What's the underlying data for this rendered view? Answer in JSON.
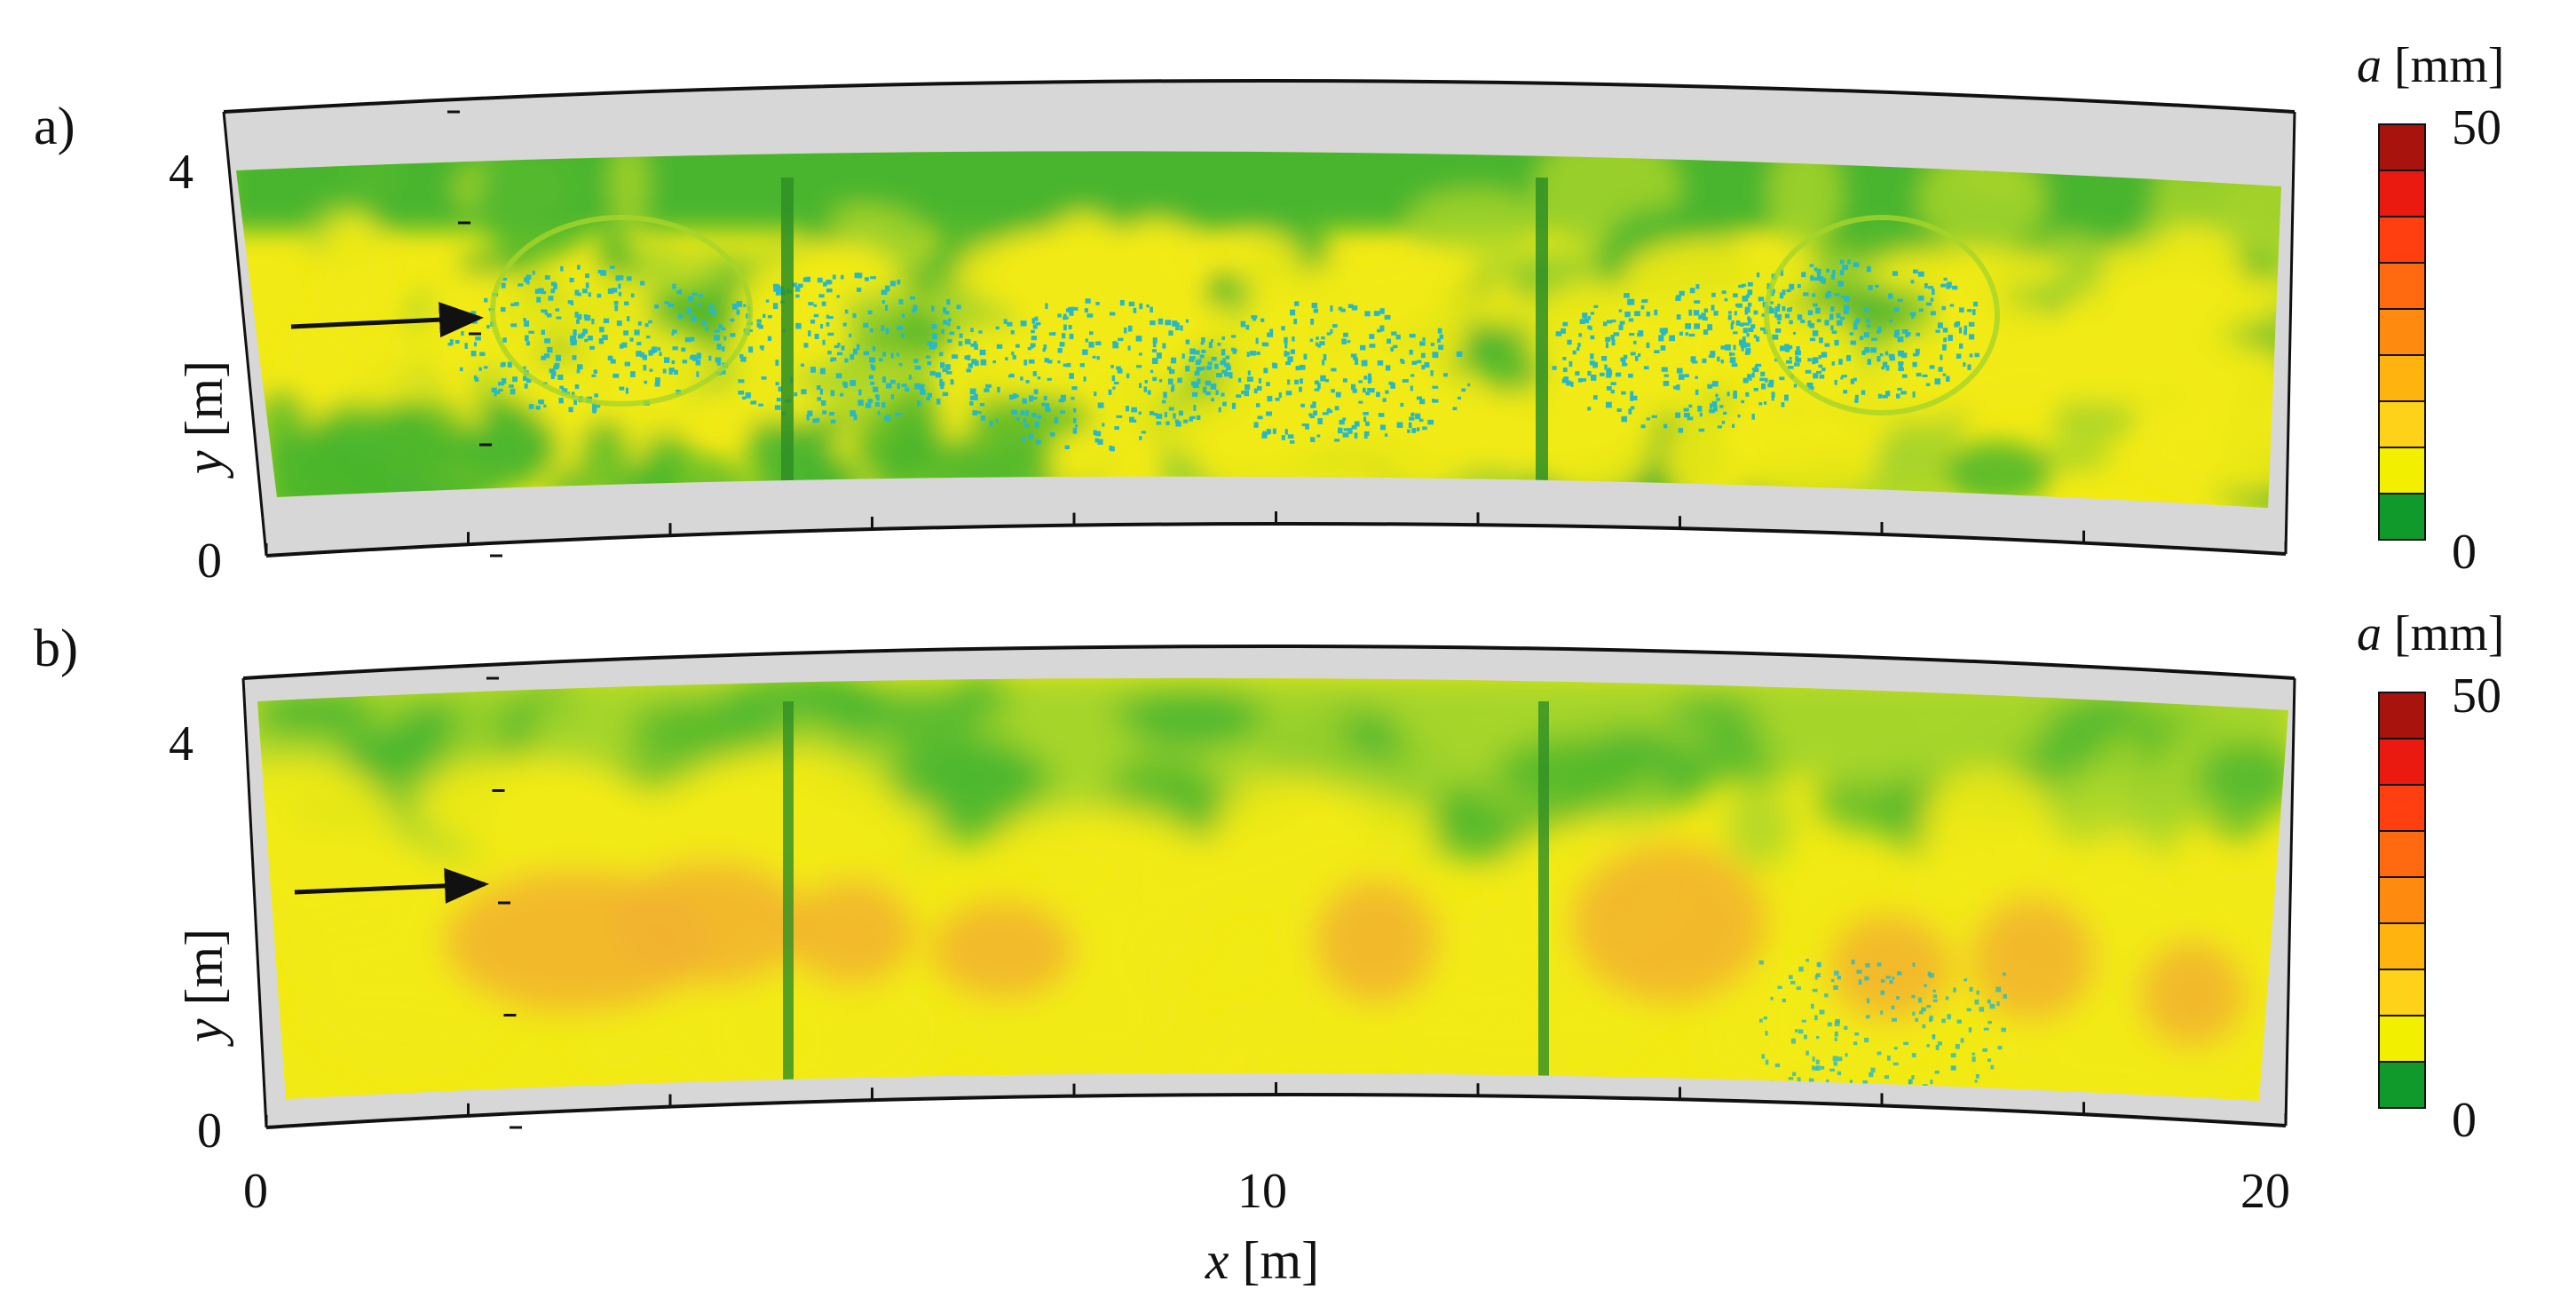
{
  "figure": {
    "x_title_var": "x",
    "x_title_unit": "[m]",
    "x_tick_labels": [
      "0",
      "10",
      "20"
    ]
  },
  "colors": {
    "colorbar": [
      "#109a2c",
      "#f2ef00",
      "#ffd21a",
      "#ffb30f",
      "#ff8a10",
      "#ff6a10",
      "#ff3f10",
      "#ea1a10",
      "#a8130e"
    ],
    "frame_gray": "#d7d7d7",
    "green": "#49b52e",
    "light_green": "#a6d42a",
    "yellow": "#f2ea14",
    "orange": "#f2b230",
    "cyan": "#27b9c8"
  },
  "chart_data": [
    {
      "type": "heatmap",
      "panel_label": "a)",
      "xlabel": "x [m]",
      "ylabel_var": "y",
      "ylabel_unit": "[m]",
      "xlim": [
        0,
        20
      ],
      "ylim": [
        0,
        4.5
      ],
      "x_tick_labels": [
        "0",
        "10",
        "20"
      ],
      "y_tick_labels": [
        "0",
        "4"
      ],
      "colorbar": {
        "title_var": "a",
        "title_unit": "[mm]",
        "min": 0,
        "max": 50,
        "min_label": "0",
        "max_label": "50",
        "levels": 9
      },
      "annotations": [
        {
          "type": "arrow",
          "from": [
            0.4,
            2.75
          ],
          "to": [
            2.2,
            2.75
          ]
        }
      ]
    },
    {
      "type": "heatmap",
      "panel_label": "b)",
      "xlabel": "x [m]",
      "ylabel_var": "y",
      "ylabel_unit": "[m]",
      "xlim": [
        0,
        20
      ],
      "ylim": [
        0,
        4.5
      ],
      "x_tick_labels": [
        "0",
        "10",
        "20"
      ],
      "y_tick_labels": [
        "0",
        "4"
      ],
      "colorbar": {
        "title_var": "a",
        "title_unit": "[mm]",
        "min": 0,
        "max": 50,
        "min_label": "0",
        "max_label": "50",
        "levels": 9
      },
      "annotations": [
        {
          "type": "arrow",
          "from": [
            0.4,
            2.75
          ],
          "to": [
            2.2,
            2.75
          ]
        }
      ]
    }
  ]
}
